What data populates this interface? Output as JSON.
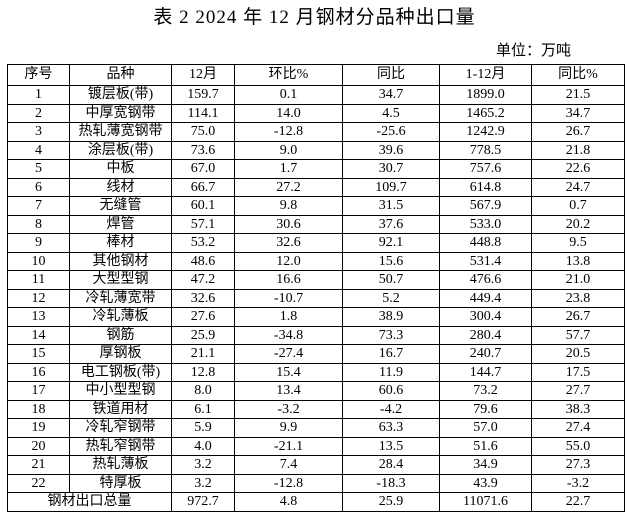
{
  "title": "表 2  2024 年 12 月钢材分品种出口量",
  "unit_label": "单位：万吨",
  "table": {
    "headers": [
      "序号",
      "品种",
      "12月",
      "环比%",
      "同比",
      "1-12月",
      "同比%"
    ],
    "rows": [
      [
        "1",
        "镀层板(带)",
        "159.7",
        "0.1",
        "34.7",
        "1899.0",
        "21.5"
      ],
      [
        "2",
        "中厚宽钢带",
        "114.1",
        "14.0",
        "4.5",
        "1465.2",
        "34.7"
      ],
      [
        "3",
        "热轧薄宽钢带",
        "75.0",
        "-12.8",
        "-25.6",
        "1242.9",
        "26.7"
      ],
      [
        "4",
        "涂层板(带)",
        "73.6",
        "9.0",
        "39.6",
        "778.5",
        "21.8"
      ],
      [
        "5",
        "中板",
        "67.0",
        "1.7",
        "30.7",
        "757.6",
        "22.6"
      ],
      [
        "6",
        "线材",
        "66.7",
        "27.2",
        "109.7",
        "614.8",
        "24.7"
      ],
      [
        "7",
        "无缝管",
        "60.1",
        "9.8",
        "31.5",
        "567.9",
        "0.7"
      ],
      [
        "8",
        "焊管",
        "57.1",
        "30.6",
        "37.6",
        "533.0",
        "20.2"
      ],
      [
        "9",
        "棒材",
        "53.2",
        "32.6",
        "92.1",
        "448.8",
        "9.5"
      ],
      [
        "10",
        "其他钢材",
        "48.6",
        "12.0",
        "15.6",
        "531.4",
        "13.8"
      ],
      [
        "11",
        "大型型钢",
        "47.2",
        "16.6",
        "50.7",
        "476.6",
        "21.0"
      ],
      [
        "12",
        "冷轧薄宽带",
        "32.6",
        "-10.7",
        "5.2",
        "449.4",
        "23.8"
      ],
      [
        "13",
        "冷轧薄板",
        "27.6",
        "1.8",
        "38.9",
        "300.4",
        "26.7"
      ],
      [
        "14",
        "钢筋",
        "25.9",
        "-34.8",
        "73.3",
        "280.4",
        "57.7"
      ],
      [
        "15",
        "厚钢板",
        "21.1",
        "-27.4",
        "16.7",
        "240.7",
        "20.5"
      ],
      [
        "16",
        "电工钢板(带)",
        "12.8",
        "15.4",
        "11.9",
        "144.7",
        "17.5"
      ],
      [
        "17",
        "中小型型钢",
        "8.0",
        "13.4",
        "60.6",
        "73.2",
        "27.7"
      ],
      [
        "18",
        "铁道用材",
        "6.1",
        "-3.2",
        "-4.2",
        "79.6",
        "38.3"
      ],
      [
        "19",
        "冷轧窄钢带",
        "5.9",
        "9.9",
        "63.3",
        "57.0",
        "27.4"
      ],
      [
        "20",
        "热轧窄钢带",
        "4.0",
        "-21.1",
        "13.5",
        "51.6",
        "55.0"
      ],
      [
        "21",
        "热轧薄板",
        "3.2",
        "7.4",
        "28.4",
        "34.9",
        "27.3"
      ],
      [
        "22",
        "特厚板",
        "3.2",
        "-12.8",
        "-18.3",
        "43.9",
        "-3.2"
      ]
    ],
    "total": [
      "钢材出口总量",
      "972.7",
      "4.8",
      "25.9",
      "11071.6",
      "22.7"
    ]
  }
}
